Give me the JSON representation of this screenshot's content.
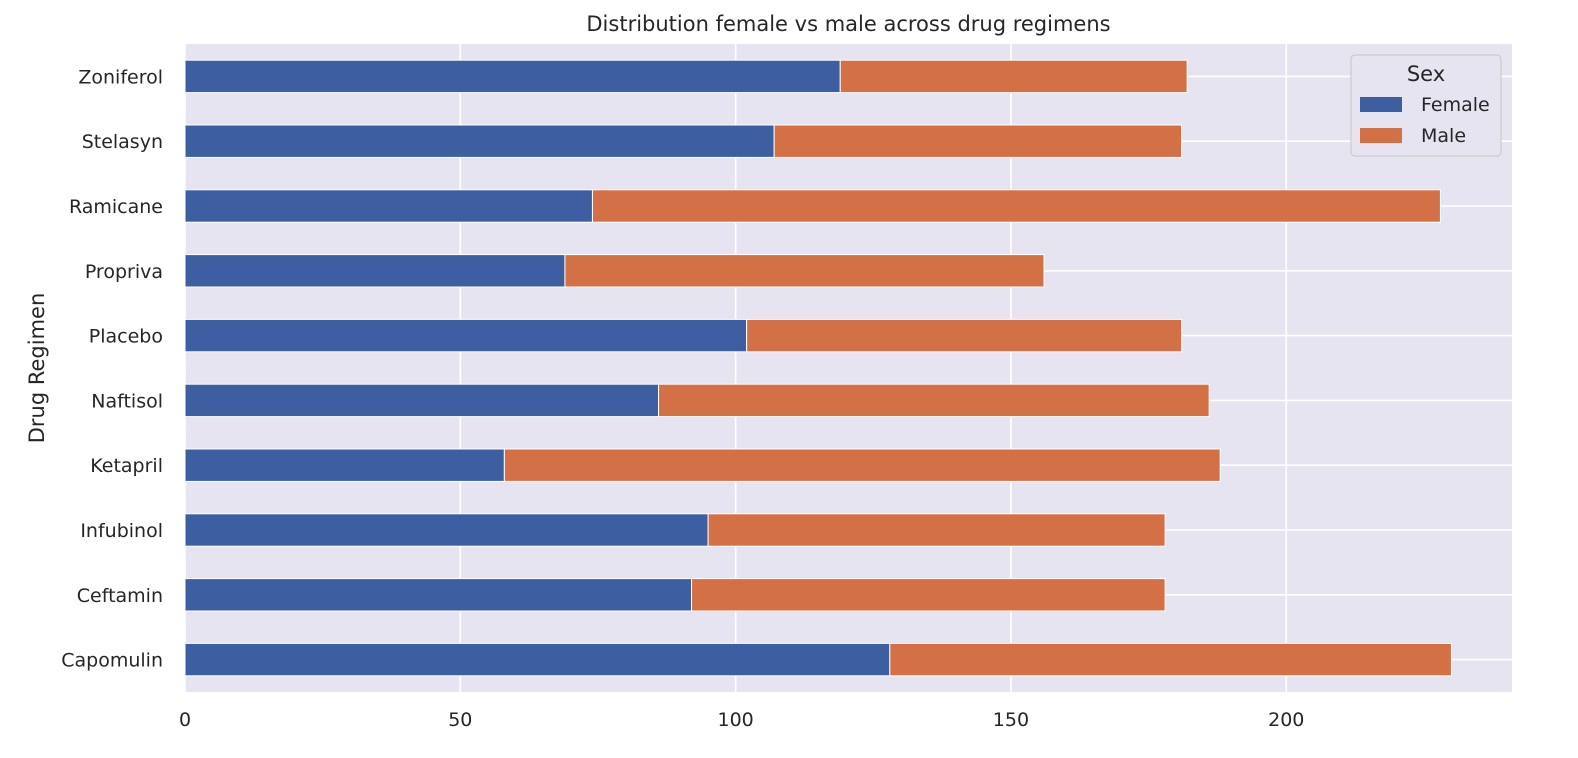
{
  "chart_data": {
    "type": "bar",
    "orientation": "horizontal",
    "stacked": true,
    "title": "Distribution female vs male across drug regimens",
    "xlabel": "",
    "ylabel": "Drug Regimen",
    "categories": [
      "Capomulin",
      "Ceftamin",
      "Infubinol",
      "Ketapril",
      "Naftisol",
      "Placebo",
      "Propriva",
      "Ramicane",
      "Stelasyn",
      "Zoniferol"
    ],
    "series": [
      {
        "name": "Female",
        "color": "#3d5fa1",
        "values": [
          128,
          92,
          95,
          58,
          86,
          102,
          69,
          74,
          107,
          119
        ]
      },
      {
        "name": "Male",
        "color": "#d47045",
        "values": [
          102,
          86,
          83,
          130,
          100,
          79,
          87,
          154,
          74,
          63
        ]
      }
    ],
    "xlim": [
      0,
      241
    ],
    "xticks": [
      0,
      50,
      100,
      150,
      200
    ],
    "grid": true,
    "legend": {
      "title": "Sex",
      "placement": "top-right"
    },
    "background_color": "#e5e4f0",
    "grid_color": "#ffffff"
  }
}
